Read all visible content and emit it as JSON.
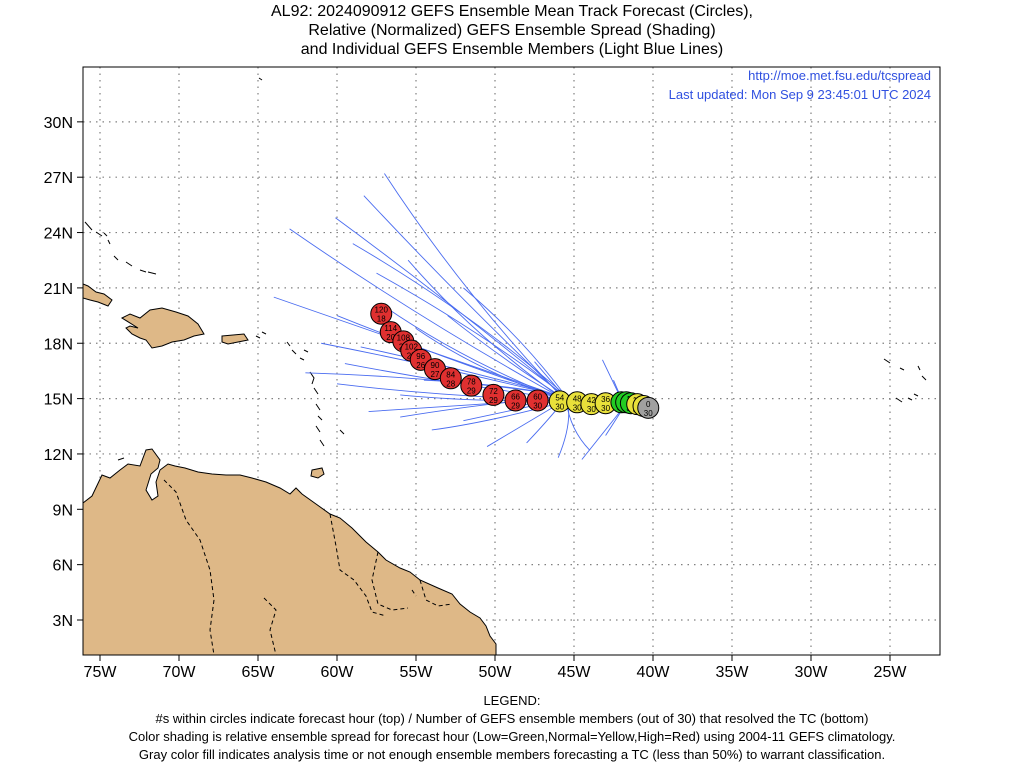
{
  "title": {
    "line1": "AL92: 2024090912 GEFS Ensemble Mean Track Forecast (Circles),",
    "line2": "Relative (Normalized) GEFS Ensemble Spread (Shading)",
    "line3": "and Individual GEFS Ensemble Members (Light Blue Lines)"
  },
  "header": {
    "url": "http://moe.met.fsu.edu/tcspread",
    "updated": "Last updated: Mon Sep 9 23:45:01 UTC 2024"
  },
  "axes": {
    "lon_ticks": [
      "75W",
      "70W",
      "65W",
      "60W",
      "55W",
      "50W",
      "45W",
      "40W",
      "35W",
      "30W",
      "25W"
    ],
    "lat_ticks": [
      "3N",
      "6N",
      "9N",
      "12N",
      "15N",
      "18N",
      "21N",
      "24N",
      "27N",
      "30N"
    ]
  },
  "colors": {
    "land": "#deb887",
    "coast": "#000000",
    "members": "#4a6cf0",
    "grid": "#808080",
    "spread_low": "#22cc22",
    "spread_normal": "#e8e03a",
    "spread_high": "#e03030",
    "analysis": "#a0a0a0"
  },
  "mean_track": [
    {
      "hour": "0",
      "members": "30",
      "lon": -40.3,
      "lat": 14.5,
      "spread": "analysis"
    },
    {
      "hour": "6",
      "members": "30",
      "lon": -40.6,
      "lat": 14.6,
      "spread": "normal"
    },
    {
      "hour": "12",
      "members": "30",
      "lon": -41.0,
      "lat": 14.7,
      "spread": "normal"
    },
    {
      "hour": "18",
      "members": "30",
      "lon": -41.4,
      "lat": 14.75,
      "spread": "low"
    },
    {
      "hour": "24",
      "members": "30",
      "lon": -41.7,
      "lat": 14.8,
      "spread": "low"
    },
    {
      "hour": "30",
      "members": "30",
      "lon": -42.0,
      "lat": 14.8,
      "spread": "low"
    },
    {
      "hour": "36",
      "members": "30",
      "lon": -43.0,
      "lat": 14.75,
      "spread": "normal"
    },
    {
      "hour": "42",
      "members": "30",
      "lon": -43.9,
      "lat": 14.7,
      "spread": "normal"
    },
    {
      "hour": "48",
      "members": "30",
      "lon": -44.8,
      "lat": 14.8,
      "spread": "normal"
    },
    {
      "hour": "54",
      "members": "30",
      "lon": -45.9,
      "lat": 14.85,
      "spread": "normal"
    },
    {
      "hour": "60",
      "members": "30",
      "lon": -47.3,
      "lat": 14.9,
      "spread": "high"
    },
    {
      "hour": "66",
      "members": "29",
      "lon": -48.7,
      "lat": 14.9,
      "spread": "high"
    },
    {
      "hour": "72",
      "members": "29",
      "lon": -50.1,
      "lat": 15.2,
      "spread": "high"
    },
    {
      "hour": "78",
      "members": "29",
      "lon": -51.5,
      "lat": 15.7,
      "spread": "high"
    },
    {
      "hour": "84",
      "members": "28",
      "lon": -52.8,
      "lat": 16.1,
      "spread": "high"
    },
    {
      "hour": "90",
      "members": "27",
      "lon": -53.8,
      "lat": 16.6,
      "spread": "high"
    },
    {
      "hour": "96",
      "members": "26",
      "lon": -54.7,
      "lat": 17.1,
      "spread": "high"
    },
    {
      "hour": "102",
      "members": "25",
      "lon": -55.3,
      "lat": 17.6,
      "spread": "high"
    },
    {
      "hour": "108",
      "members": "24",
      "lon": -55.8,
      "lat": 18.1,
      "spread": "high"
    },
    {
      "hour": "114",
      "members": "20",
      "lon": -56.6,
      "lat": 18.6,
      "spread": "high"
    },
    {
      "hour": "120",
      "members": "18",
      "lon": -57.2,
      "lat": 19.6,
      "spread": "high"
    }
  ],
  "legend": {
    "heading": "LEGEND:",
    "line1": "#s within circles indicate forecast hour (top) / Number of GEFS ensemble members (out of 30) that resolved the TC (bottom)",
    "line2": "Color shading is relative ensemble spread for forecast hour (Low=Green,Normal=Yellow,High=Red) using 2004-11 GEFS climatology.",
    "line3": "Gray color fill indicates analysis time or not enough ensemble members forecasting a TC (less than 50%) to warrant classification."
  }
}
